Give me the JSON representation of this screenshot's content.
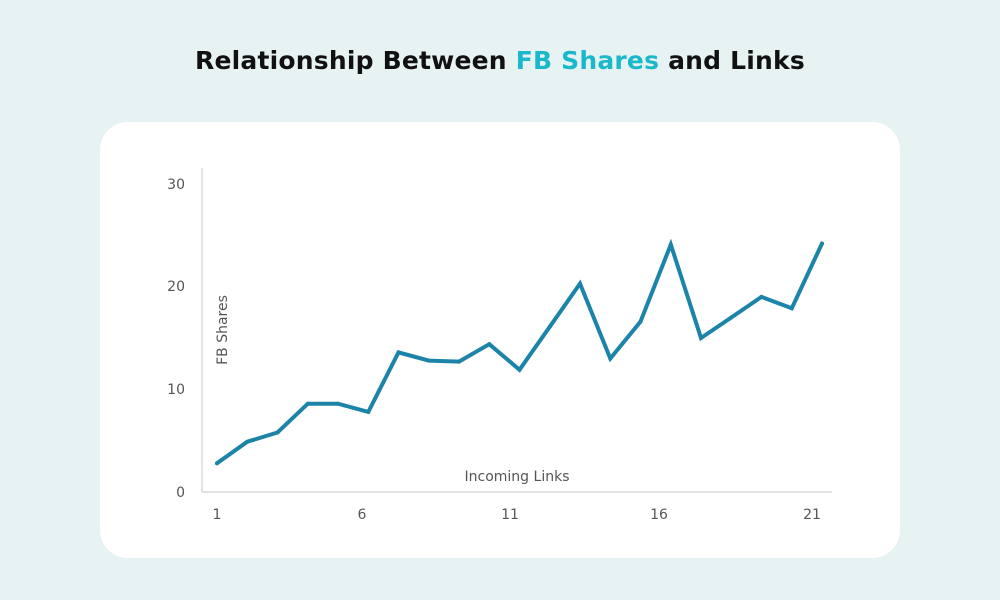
{
  "title": {
    "prefix": "Relationship Between ",
    "highlight": "FB Shares",
    "suffix": " and Links"
  },
  "colors": {
    "background": "#e7f3f3",
    "card": "#ffffff",
    "line": "#1b84a8",
    "highlight": "#1bb8cc",
    "axis": "#c7c7c7",
    "text": "#555555"
  },
  "chart_data": {
    "type": "line",
    "title": "Relationship Between FB Shares and Links",
    "xlabel": "Incoming Links",
    "ylabel": "FB Shares",
    "x": [
      1,
      2,
      3,
      4,
      5,
      6,
      7,
      8,
      9,
      10,
      11,
      12,
      13,
      14,
      15,
      16,
      17,
      18,
      19,
      20,
      21
    ],
    "series": [
      {
        "values": [
          2.8,
          4.9,
          5.8,
          8.6,
          8.6,
          7.8,
          13.6,
          12.8,
          12.7,
          14.4,
          11.9,
          16.1,
          20.3,
          13.0,
          16.6,
          24.1,
          15.0,
          17.0,
          19.0,
          17.9,
          24.2
        ]
      }
    ],
    "x_ticks": [
      1,
      6,
      11,
      16,
      21
    ],
    "y_ticks": [
      0,
      10,
      20,
      30
    ],
    "xlim": [
      1,
      21
    ],
    "ylim": [
      0,
      30
    ],
    "grid": false
  }
}
